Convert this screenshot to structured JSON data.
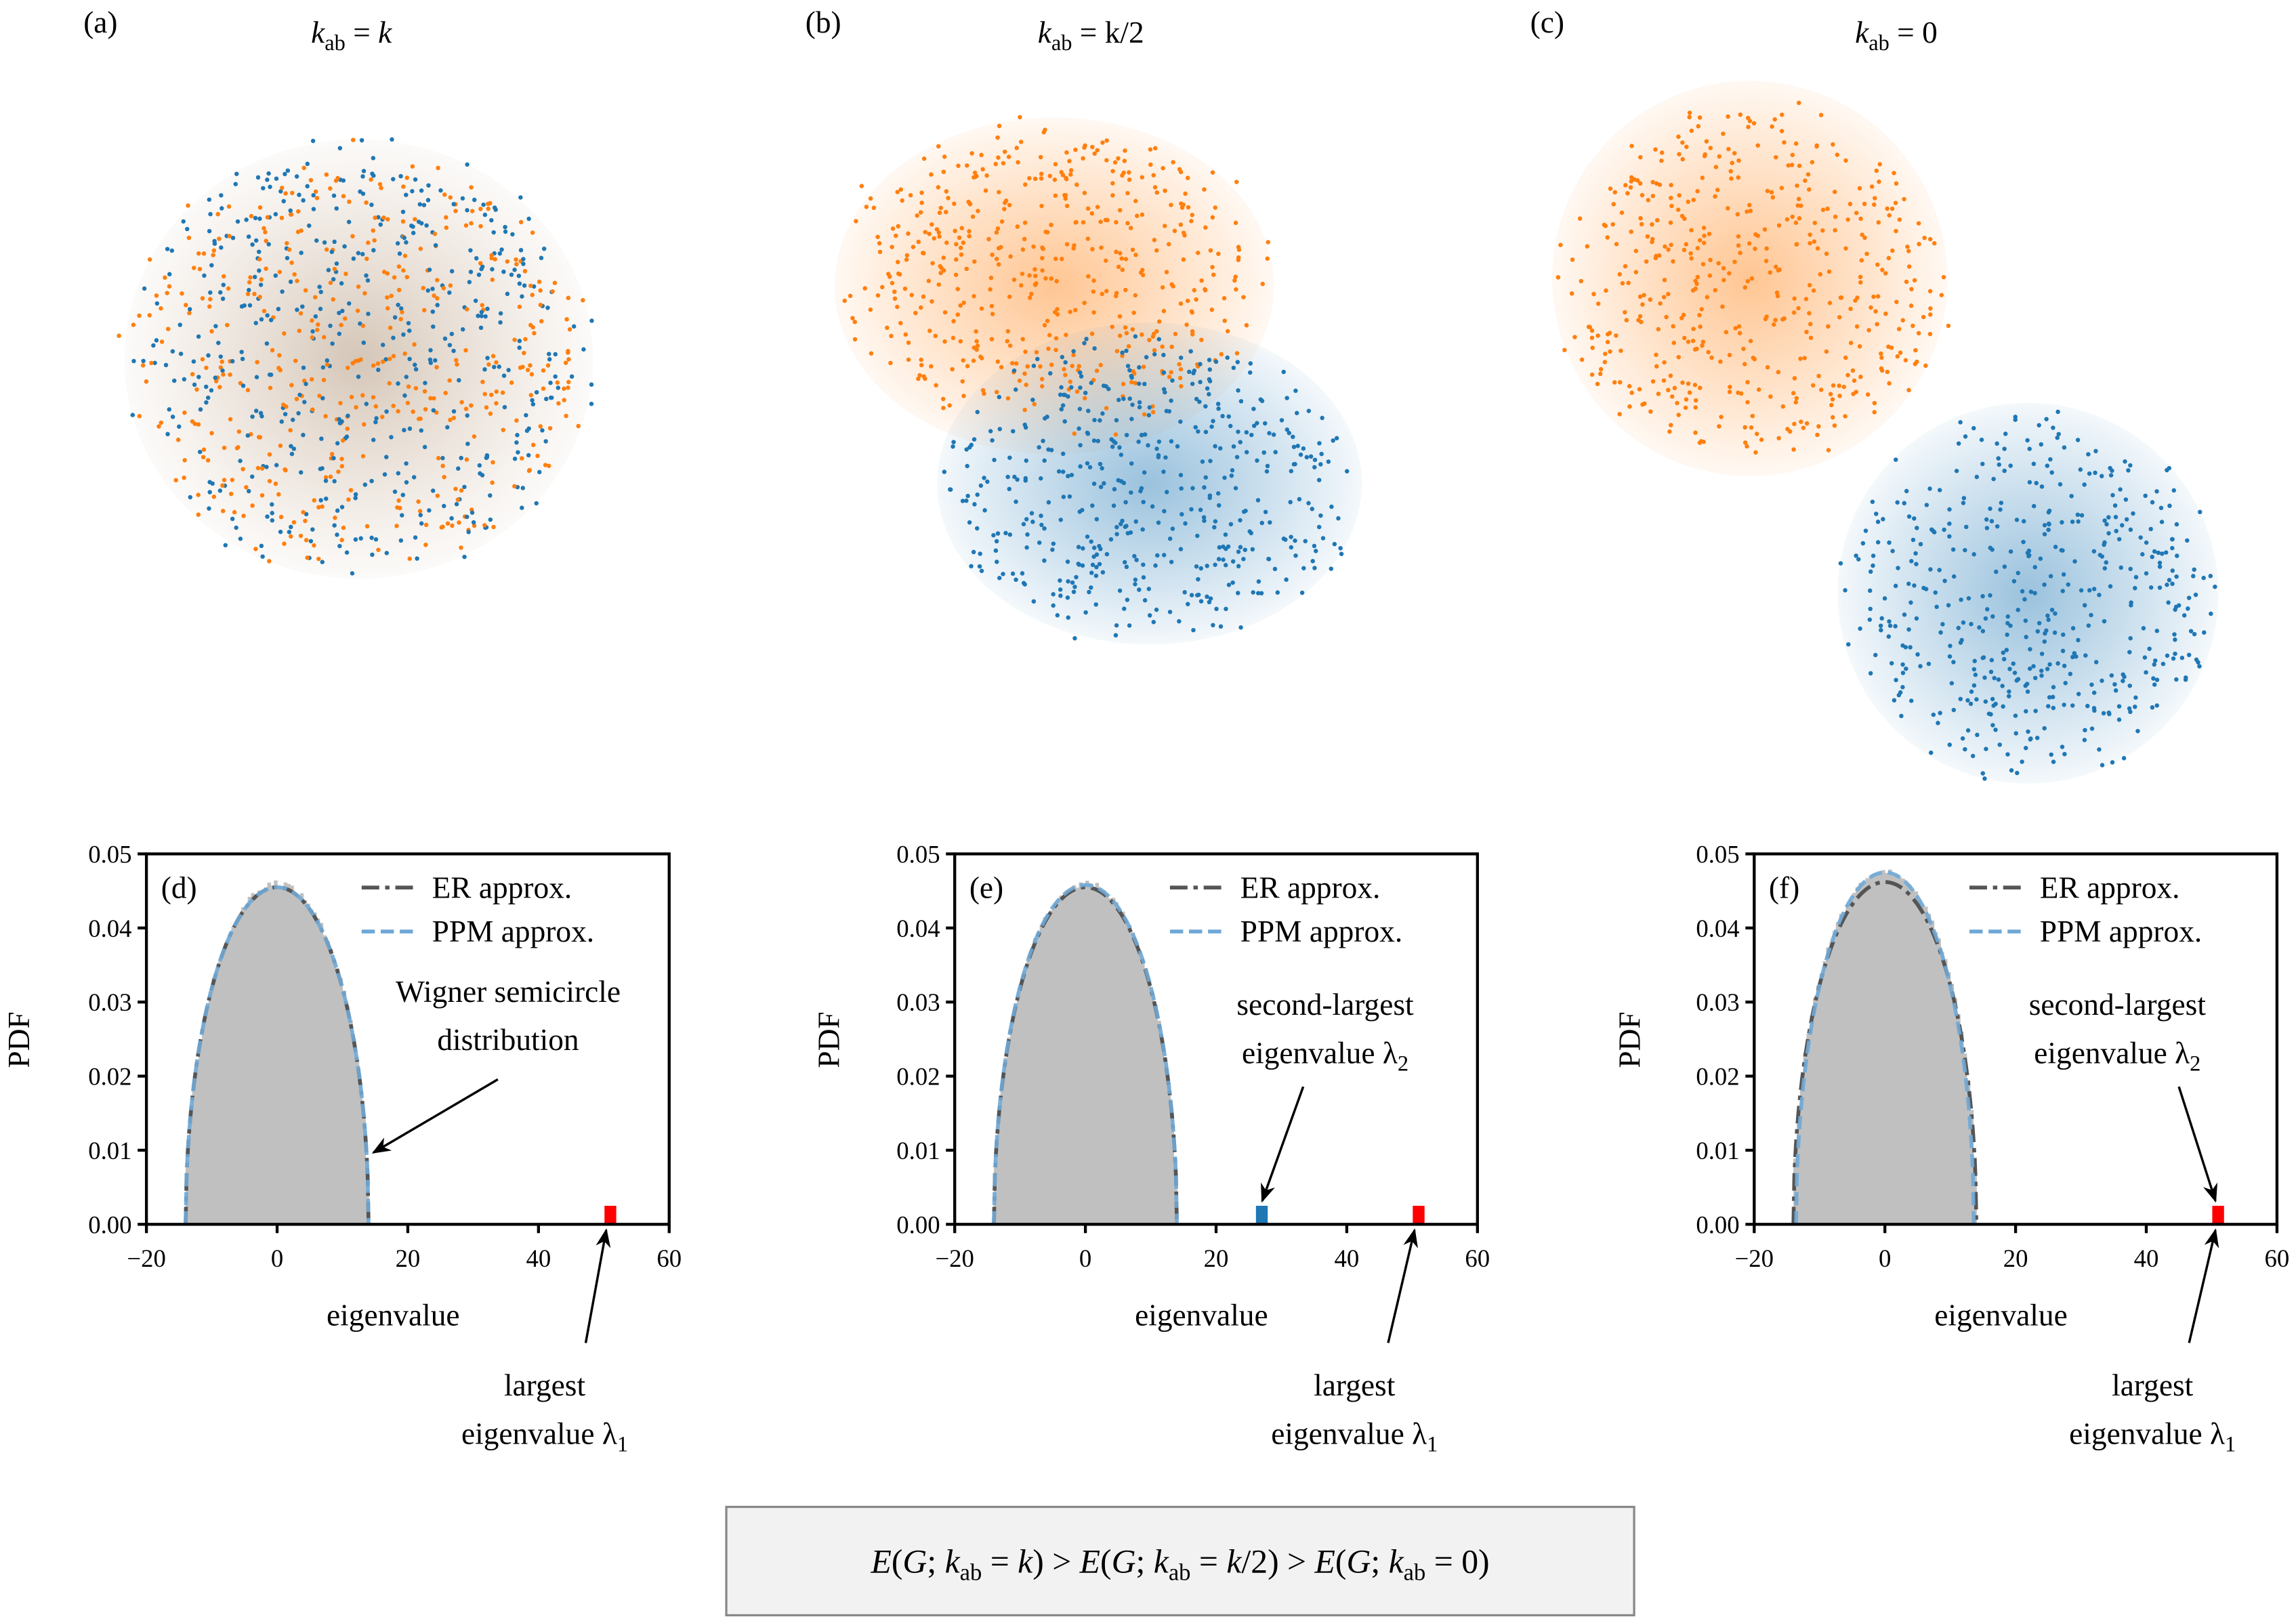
{
  "colors": {
    "group_a": "#ff7f0e",
    "group_b": "#1f77b4",
    "histogram": "#c0c0c0",
    "largest_eigenvalue": "#ff0000",
    "second_eigenvalue": "#1f77b4",
    "er_line": "#555555",
    "ppm_line": "#6fa8d6",
    "formula_box": "#f2f2f2"
  },
  "networks": [
    {
      "panel": "(a)",
      "title": {
        "var": "k",
        "sub": "ab",
        "rhs": " = k/1"
      },
      "layout": "mixed"
    },
    {
      "panel": "(b)",
      "title": {
        "var": "k",
        "sub": "ab",
        "rhs": " = k/2"
      },
      "layout": "partially-separated"
    },
    {
      "panel": "(c)",
      "title": {
        "var": "k",
        "sub": "ab",
        "rhs": " = 0"
      },
      "layout": "separated"
    }
  ],
  "chart_data": [
    {
      "type": "histogram",
      "panel": "(d)",
      "xlabel": "eigenvalue",
      "ylabel": "PDF",
      "xlim": [
        -20,
        60
      ],
      "ylim": [
        0,
        0.05
      ],
      "xticks": [
        "−20",
        "0",
        "20",
        "40",
        "60"
      ],
      "yticks": [
        "0.00",
        "0.01",
        "0.02",
        "0.03",
        "0.04",
        "0.05"
      ],
      "bulk": {
        "range": [
          -14,
          14
        ],
        "peak": 0.046
      },
      "series": [
        {
          "name": "ER approx.",
          "radius": 14,
          "peak": 0.0455,
          "style": "dash-dot"
        },
        {
          "name": "PPM approx.",
          "radius": 14,
          "peak": 0.0455,
          "style": "dashed"
        }
      ],
      "outliers": [
        {
          "x": 51,
          "height": 0.0025,
          "color": "red"
        }
      ],
      "annotations": [
        {
          "lines": [
            "Wigner semicircle",
            "distribution"
          ]
        },
        {
          "lines": [
            "largest",
            "eigenvalue λ",
            "1"
          ]
        }
      ],
      "legend": "top-right"
    },
    {
      "type": "histogram",
      "panel": "(e)",
      "xlabel": "eigenvalue",
      "ylabel": "PDF",
      "xlim": [
        -20,
        60
      ],
      "ylim": [
        0,
        0.05
      ],
      "xticks": [
        "−20",
        "0",
        "20",
        "40",
        "60"
      ],
      "yticks": [
        "0.00",
        "0.01",
        "0.02",
        "0.03",
        "0.04",
        "0.05"
      ],
      "bulk": {
        "range": [
          -14,
          14
        ],
        "peak": 0.046
      },
      "series": [
        {
          "name": "ER approx.",
          "radius": 14,
          "peak": 0.0455,
          "style": "dash-dot"
        },
        {
          "name": "PPM approx.",
          "radius": 14,
          "peak": 0.0458,
          "style": "dashed"
        }
      ],
      "outliers": [
        {
          "x": 27,
          "height": 0.0025,
          "color": "blue"
        },
        {
          "x": 51,
          "height": 0.0025,
          "color": "red"
        }
      ],
      "annotations": [
        {
          "lines": [
            "second-largest",
            "eigenvalue λ",
            "2"
          ]
        },
        {
          "lines": [
            "largest",
            "eigenvalue λ",
            "1"
          ]
        }
      ],
      "legend": "top-right"
    },
    {
      "type": "histogram",
      "panel": "(f)",
      "xlabel": "eigenvalue",
      "ylabel": "PDF",
      "xlim": [
        -20,
        60
      ],
      "ylim": [
        0,
        0.05
      ],
      "xticks": [
        "−20",
        "0",
        "20",
        "40",
        "60"
      ],
      "yticks": [
        "0.00",
        "0.01",
        "0.02",
        "0.03",
        "0.04",
        "0.05"
      ],
      "bulk": {
        "range": [
          -14,
          14
        ],
        "peak": 0.0475
      },
      "series": [
        {
          "name": "ER approx.",
          "radius": 14,
          "peak": 0.0462,
          "style": "dash-dot"
        },
        {
          "name": "PPM approx.",
          "radius": 13.6,
          "peak": 0.0475,
          "style": "dashed"
        }
      ],
      "outliers": [
        {
          "x": 51,
          "height": 0.0025,
          "color": "red"
        }
      ],
      "annotations": [
        {
          "lines": [
            "second-largest",
            "eigenvalue λ",
            "2"
          ]
        },
        {
          "lines": [
            "largest",
            "eigenvalue λ",
            "1"
          ]
        }
      ],
      "legend": "top-right"
    }
  ],
  "formula": [
    {
      "i": "E"
    },
    {
      "t": "("
    },
    {
      "i": "G"
    },
    {
      "t": "; "
    },
    {
      "i": "k"
    },
    {
      "s": "ab"
    },
    {
      "t": " = "
    },
    {
      "i": "k"
    },
    {
      "t": ") > "
    },
    {
      "i": "E"
    },
    {
      "t": "("
    },
    {
      "i": "G"
    },
    {
      "t": "; "
    },
    {
      "i": "k"
    },
    {
      "s": "ab"
    },
    {
      "t": " = "
    },
    {
      "i": "k"
    },
    {
      "t": "/2) > "
    },
    {
      "i": "E"
    },
    {
      "t": "("
    },
    {
      "i": "G"
    },
    {
      "t": "; "
    },
    {
      "i": "k"
    },
    {
      "s": "ab"
    },
    {
      "t": " = 0)"
    }
  ]
}
